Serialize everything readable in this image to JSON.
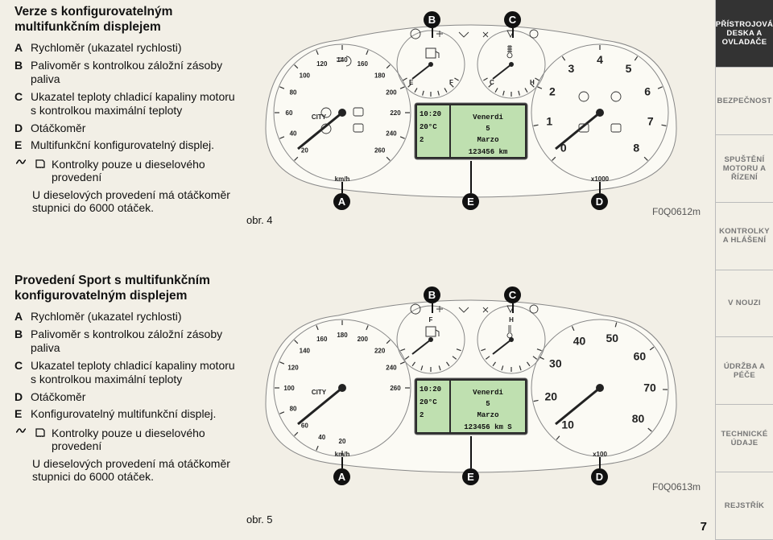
{
  "sections": {
    "top": {
      "title": "Verze s konfigurovatelným multifunkčním displejem",
      "items": {
        "A": "Rychloměr (ukazatel rychlosti)",
        "B": "Palivoměr s kontrolkou záložní zásoby paliva",
        "C": "Ukazatel teploty chladicí kapaliny motoru s kontrolkou maximální teploty",
        "D": "Otáčkoměr",
        "E": "Multifunkční konfigurovatelný displej."
      },
      "diesel_note": "Kontrolky pouze u dieselového provedení",
      "sub_note": "U dieselových provedení má otáčkoměr stupnici do 6000 otáček.",
      "fig_label": "obr. 4",
      "fig_code": "F0Q0612m"
    },
    "bottom": {
      "title": "Provedení Sport s multifunkčním konfigurovatelným displejem",
      "items": {
        "A": "Rychloměr (ukazatel rychlosti)",
        "B": "Palivoměr s kontrolkou záložní zásoby paliva",
        "C": "Ukazatel teploty chladicí kapaliny motoru s kontrolkou maximální teploty",
        "D": "Otáčkoměr",
        "E": "Konfigurovatelný multifunkční displej."
      },
      "diesel_note": "Kontrolky pouze u dieselového provedení",
      "sub_note": "U dieselových provedení má otáčkoměr stupnici do 6000 otáček.",
      "fig_label": "obr. 5",
      "fig_code": "F0Q0613m"
    }
  },
  "dashboard": {
    "top": {
      "speedo": {
        "ticks": [
          "20",
          "40",
          "60",
          "80",
          "100",
          "120",
          "140",
          "160",
          "180",
          "200",
          "220",
          "240",
          "260"
        ],
        "unit": "km/h",
        "city": "CITY"
      },
      "fuel_letters": [
        "E",
        "F"
      ],
      "temp_letters": [
        "C",
        "H"
      ],
      "tach": {
        "ticks": [
          "0",
          "1",
          "2",
          "3",
          "4",
          "5",
          "6",
          "7",
          "8"
        ],
        "unit": "x1000"
      },
      "lcd": {
        "time": "10:20",
        "temp": "20°C",
        "trip": "2",
        "day": "Venerdi",
        "daynum": "5",
        "month": "Marzo",
        "odo": "123456 km"
      }
    },
    "bottom": {
      "speedo": {
        "ticks": [
          "20",
          "40",
          "60",
          "80",
          "100",
          "120",
          "140",
          "160",
          "180",
          "200",
          "220",
          "240",
          "260"
        ],
        "unit": "km/h",
        "city": "CITY"
      },
      "fuel_letters": [
        "F"
      ],
      "temp_letters": [
        "H"
      ],
      "tach": {
        "ticks": [
          "10",
          "20",
          "30",
          "40",
          "50",
          "60",
          "70",
          "80"
        ],
        "unit": "x100"
      },
      "lcd": {
        "time": "10:20",
        "temp": "20°C",
        "trip": "2",
        "day": "Venerdi",
        "daynum": "5",
        "month": "Marzo",
        "odo": "123456 km  S"
      }
    }
  },
  "side_tabs": [
    "PŘÍSTROJOVÁ DESKA A OVLADAČE",
    "BEZPEČNOST",
    "SPUŠTĚNÍ MOTORU A ŘÍZENÍ",
    "KONTROLKY A HLÁŠENÍ",
    "V NOUZI",
    "ÚDRŽBA A PÉČE",
    "TECHNICKÉ ÚDAJE",
    "REJSTŘÍK"
  ],
  "page_number": "7",
  "colors": {
    "bg": "#f2efe6",
    "dark": "#333333",
    "line": "#111111",
    "muted": "#777777",
    "cluster_border": "#888888",
    "cluster_fill": "#fbfaf4"
  },
  "markers": [
    "A",
    "B",
    "C",
    "D",
    "E"
  ]
}
